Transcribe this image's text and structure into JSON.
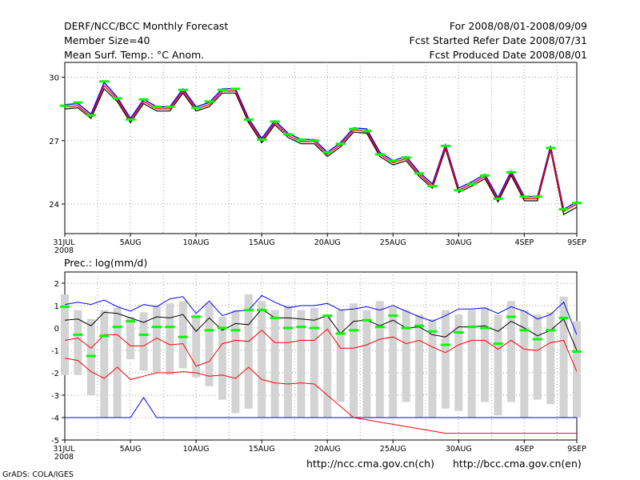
{
  "header": {
    "title": "DERF/NCC/BCC Monthly Forecast",
    "member_size": "Member Size=40",
    "variable": "Mean Surf. Temp.: °C Anom.",
    "period": "For 2008/08/01-2008/09/09",
    "start_date": "Fcst Started Refer Date 2008/07/31",
    "produced_date": "Fcst Produced Date 2008/08/01"
  },
  "footer": {
    "url_ch": "http://ncc.cma.gov.cn(ch)",
    "url_en": "http://bcc.cma.gov.cn(en)",
    "credit": "GrADS: COLA/IGES"
  },
  "colors": {
    "upper": "#0000ff",
    "lower": "#ff0000",
    "mean": "#000000",
    "marker": "#00ff00",
    "box": "#d3d3d3",
    "grid": "#999999"
  },
  "chart_data": [
    {
      "type": "line",
      "title": "Mean Surf. Temp.: °C Anom.",
      "x_start": "2008-07-31",
      "x_end": "2008-09-09",
      "xtick_labels": [
        "31JUL\n2008",
        "5AUG",
        "10AUG",
        "15AUG",
        "20AUG",
        "25AUG",
        "30AUG",
        "4SEP",
        "9SEP"
      ],
      "ylim": [
        22.6,
        30.7
      ],
      "yticks": [
        "24",
        "27",
        "30"
      ],
      "grid": true,
      "series": [
        {
          "name": "upper",
          "values": [
            28.7,
            28.75,
            28.25,
            29.75,
            29.05,
            28.05,
            28.95,
            28.6,
            28.6,
            29.45,
            28.6,
            28.8,
            29.45,
            29.45,
            28.05,
            27.1,
            27.95,
            27.35,
            27.05,
            27.05,
            26.45,
            26.9,
            27.6,
            27.55,
            26.45,
            26.05,
            26.25,
            25.5,
            24.95,
            26.8,
            24.75,
            25.05,
            25.4,
            24.3,
            25.55,
            24.35,
            24.35,
            26.75,
            23.75,
            24.1
          ]
        },
        {
          "name": "mean",
          "values": [
            28.6,
            28.65,
            28.15,
            29.6,
            28.95,
            27.95,
            28.85,
            28.5,
            28.5,
            29.35,
            28.5,
            28.7,
            29.35,
            29.35,
            27.95,
            27.0,
            27.85,
            27.25,
            26.95,
            26.95,
            26.35,
            26.8,
            27.5,
            27.45,
            26.35,
            25.95,
            26.15,
            25.4,
            24.85,
            26.7,
            24.65,
            24.95,
            25.3,
            24.2,
            25.45,
            24.25,
            24.25,
            26.65,
            23.65,
            24.0
          ]
        },
        {
          "name": "lower",
          "values": [
            28.5,
            28.55,
            28.05,
            29.45,
            28.85,
            27.85,
            28.75,
            28.4,
            28.4,
            29.25,
            28.4,
            28.6,
            29.25,
            29.25,
            27.85,
            26.9,
            27.75,
            27.15,
            26.85,
            26.85,
            26.25,
            26.7,
            27.4,
            27.35,
            26.25,
            25.85,
            26.05,
            25.3,
            24.75,
            26.6,
            24.55,
            24.85,
            25.2,
            24.1,
            25.35,
            24.15,
            24.15,
            26.55,
            23.5,
            23.85
          ]
        },
        {
          "name": "marker",
          "values": [
            28.65,
            28.8,
            28.2,
            29.8,
            29.0,
            28.0,
            28.95,
            28.6,
            28.6,
            29.4,
            28.55,
            28.85,
            29.4,
            29.45,
            28.0,
            27.05,
            27.9,
            27.3,
            27.05,
            27.0,
            26.45,
            26.85,
            27.55,
            27.45,
            26.35,
            26.05,
            26.2,
            25.45,
            24.85,
            26.75,
            24.65,
            24.95,
            25.35,
            24.25,
            25.5,
            24.35,
            24.35,
            26.65,
            23.75,
            24.05
          ]
        }
      ]
    },
    {
      "type": "line",
      "title": "Prec.: log(mm/d)",
      "x_start": "2008-07-31",
      "x_end": "2008-09-09",
      "xtick_labels": [
        "31JUL\n2008",
        "5AUG",
        "10AUG",
        "15AUG",
        "20AUG",
        "25AUG",
        "30AUG",
        "4SEP",
        "9SEP"
      ],
      "ylim": [
        -5,
        2.5
      ],
      "yticks": [
        "-5",
        "-4",
        "-3",
        "-2",
        "-1",
        "0",
        "1",
        "2"
      ],
      "grid": true,
      "series": [
        {
          "name": "box_top",
          "values": [
            1.5,
            0.8,
            0.4,
            0.8,
            0.9,
            0.5,
            0.7,
            1.0,
            1.1,
            1.2,
            0.6,
            1.1,
            0.5,
            0.8,
            1.5,
            1.2,
            0.8,
            1.0,
            0.8,
            0.9,
            0.5,
            0.8,
            1.1,
            0.8,
            1.2,
            0.9,
            0.8,
            0.6,
            0.4,
            0.8,
            0.6,
            0.8,
            0.9,
            0.6,
            1.2,
            0.8,
            0.6,
            0.7,
            1.4,
            0.3
          ]
        },
        {
          "name": "box_bottom",
          "values": [
            -2.1,
            -2.1,
            -3.0,
            -4.0,
            -4.0,
            -1.4,
            -1.9,
            -2.0,
            -2.1,
            -1.8,
            -2.2,
            -2.6,
            -3.2,
            -3.8,
            -3.6,
            -4.0,
            -4.0,
            -4.0,
            -4.0,
            -4.0,
            -4.0,
            -3.3,
            -4.0,
            -4.0,
            -4.0,
            -4.0,
            -3.3,
            -4.0,
            -4.0,
            -3.6,
            -3.7,
            -4.0,
            -3.3,
            -3.9,
            -3.3,
            -4.0,
            -3.2,
            -3.4,
            -4.0,
            -4.0
          ]
        },
        {
          "name": "upper",
          "values": [
            1.05,
            1.15,
            1.05,
            1.25,
            0.95,
            0.75,
            1.05,
            0.95,
            1.3,
            1.4,
            0.65,
            1.2,
            0.55,
            0.75,
            0.8,
            1.45,
            1.15,
            0.9,
            1.0,
            1.0,
            1.1,
            0.8,
            0.85,
            0.95,
            0.8,
            1.0,
            0.75,
            0.5,
            0.3,
            0.55,
            0.85,
            0.85,
            0.9,
            0.65,
            0.95,
            0.75,
            0.4,
            0.6,
            1.15,
            -0.3
          ]
        },
        {
          "name": "mean",
          "values": [
            0.35,
            0.4,
            0.1,
            0.7,
            0.65,
            0.45,
            0.25,
            0.5,
            0.45,
            0.6,
            -0.15,
            0.45,
            -0.1,
            0.2,
            0.15,
            0.85,
            0.45,
            0.45,
            0.4,
            0.35,
            0.55,
            -0.25,
            0.3,
            0.35,
            0.1,
            0.35,
            0.0,
            0.05,
            -0.3,
            -0.4,
            0.05,
            0.05,
            0.1,
            -0.15,
            0.3,
            0.0,
            -0.35,
            -0.1,
            0.4,
            -1.0
          ]
        },
        {
          "name": "lower",
          "values": [
            -0.55,
            -0.45,
            -0.9,
            -0.3,
            -0.3,
            -0.8,
            -0.8,
            -0.45,
            -0.75,
            -0.7,
            -1.7,
            -1.5,
            -0.7,
            -0.55,
            -0.6,
            -0.1,
            -0.65,
            -0.65,
            -0.55,
            -0.55,
            -0.05,
            -0.9,
            -0.9,
            -0.75,
            -0.5,
            -0.4,
            -0.7,
            -0.55,
            -0.85,
            -1.1,
            -0.75,
            -0.55,
            -0.55,
            -0.95,
            -0.55,
            -0.95,
            -1.0,
            -0.65,
            -0.55,
            -1.95
          ]
        },
        {
          "name": "lower2",
          "values": [
            -1.35,
            -1.45,
            -1.95,
            -2.25,
            -1.75,
            -2.3,
            -2.15,
            -2.0,
            -2.0,
            -1.95,
            -2.0,
            -2.15,
            -2.1,
            -2.25,
            -1.75,
            -2.3,
            -2.45,
            -2.5,
            -2.45,
            -2.5,
            -3.0,
            -3.5,
            -4.0,
            -4.1,
            -4.2,
            -4.3,
            -4.4,
            -4.5,
            -4.6,
            -4.7,
            -4.7,
            -4.7,
            -4.7,
            -4.7,
            -4.7,
            -4.7,
            -4.7,
            -4.7,
            -4.7,
            -4.7
          ]
        },
        {
          "name": "min",
          "values": [
            -4.0,
            -4.0,
            -4.0,
            -4.0,
            -4.0,
            -4.0,
            -3.1,
            -4.0,
            -4.0,
            -4.0,
            -4.0,
            -4.0,
            -4.0,
            -4.0,
            -4.0,
            -4.0,
            -4.0,
            -4.0,
            -4.0,
            -4.0,
            -4.0,
            -4.0,
            -4.0,
            -4.0,
            -4.0,
            -4.0,
            -4.0,
            -4.0,
            -4.0,
            -4.0,
            -4.0,
            -4.0,
            -4.0,
            -4.0,
            -4.0,
            -4.0,
            -4.0,
            -4.0,
            -4.0,
            -4.0
          ]
        },
        {
          "name": "marker",
          "values": [
            0.95,
            -0.3,
            -1.25,
            -0.35,
            0.05,
            0.3,
            -0.3,
            0.05,
            0.05,
            -0.4,
            0.5,
            -0.1,
            0.0,
            -0.1,
            0.8,
            0.8,
            0.45,
            0.0,
            0.05,
            0.0,
            0.55,
            -0.25,
            -0.1,
            0.35,
            0.05,
            0.55,
            0.0,
            0.1,
            -0.15,
            -0.75,
            -0.2,
            0.05,
            0.0,
            -0.7,
            0.5,
            -0.1,
            -0.5,
            -0.1,
            0.45,
            -1.05
          ]
        }
      ]
    }
  ]
}
